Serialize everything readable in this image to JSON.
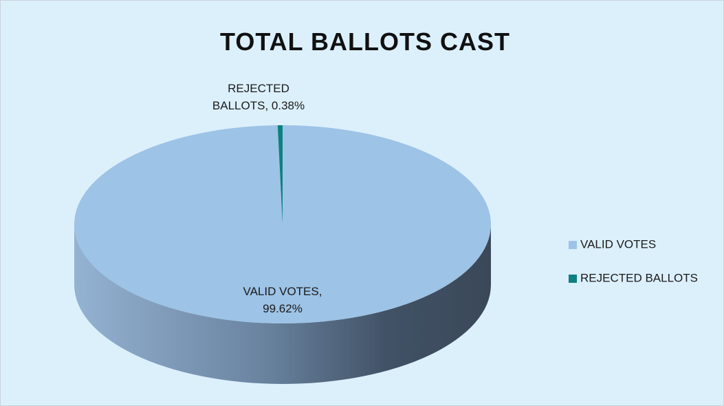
{
  "chart_data": {
    "type": "pie",
    "title": "TOTAL BALLOTS CAST",
    "categories": [
      "VALID VOTES",
      "REJECTED BALLOTS"
    ],
    "values": [
      99.62,
      0.38
    ],
    "value_labels": [
      "VALID VOTES, 99.62%",
      "REJECTED BALLOTS, 0.38%"
    ],
    "colors": [
      "#9dc3e6",
      "#0e8080"
    ],
    "legend": "right"
  }
}
